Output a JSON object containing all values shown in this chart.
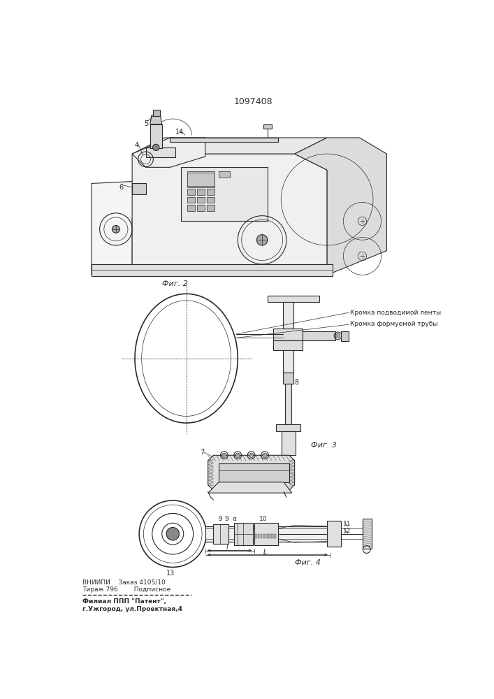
{
  "patent_number": "1097408",
  "background_color": "#ffffff",
  "line_color": "#2a2a2a",
  "fig2_label": "Фиг. 2",
  "fig3_label": "Фиг. 3",
  "fig4_label": "Фиг. 4",
  "label_kromka1": "Кромка подводимой ленты",
  "label_kromka2": "Кромка формуемой трубы",
  "footer_line1": "ВНИИПИ    Заказ 4105/10",
  "footer_line2": "Тираж 796        Подписное",
  "footer_line3": "Филиал ППП \"Патент\",",
  "footer_line4": "г.Ужгород, ул.Проектная,4"
}
